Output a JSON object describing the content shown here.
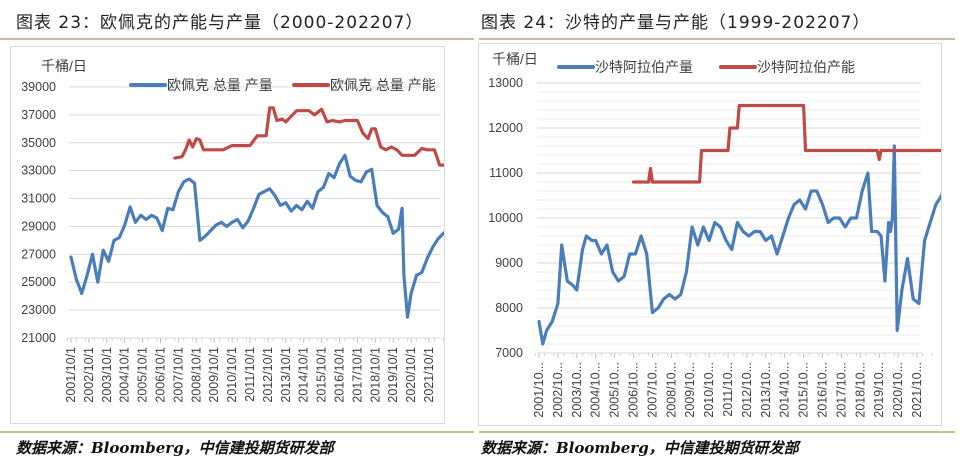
{
  "left": {
    "figure_title": "图表 23：欧佩克的产能与产量（2000-202207）",
    "source": "数据来源：Bloomberg，中信建投期货研发部"
  },
  "right": {
    "figure_title": "图表 24：沙特的产量与产能（1999-202207）",
    "source": "数据来源：Bloomberg，中信建投期货研发部"
  },
  "colors": {
    "production": "#4a7ebb",
    "capacity": "#be4b48",
    "grid": "#d9d9d9",
    "rule": "#c9bc97"
  },
  "chart_data": [
    {
      "type": "line",
      "title": "欧佩克的产能与产量（2000-202207）",
      "ylabel": "千桶/日",
      "xlabel": "",
      "ylim": [
        21000,
        39000
      ],
      "yticks": [
        21000,
        23000,
        25000,
        27000,
        29000,
        31000,
        33000,
        35000,
        37000,
        39000
      ],
      "grid": true,
      "legend_position": "top",
      "categories": [
        "2001/10/1",
        "2002/10/1",
        "2003/10/1",
        "2004/10/1",
        "2005/10/1",
        "2006/10/1",
        "2007/10/1",
        "2008/10/1",
        "2009/10/1",
        "2010/10/1",
        "2011/10/1",
        "2012/10/1",
        "2013/10/1",
        "2014/10/1",
        "2015/10/1",
        "2016/10/1",
        "2017/10/1",
        "2018/10/1",
        "2019/10/1",
        "2020/10/1",
        "2021/10/1"
      ],
      "series": [
        {
          "name": "欧佩克 总量 产量",
          "color": "#4a7ebb",
          "x": [
            2001.0,
            2001.3,
            2001.6,
            2001.9,
            2002.2,
            2002.5,
            2002.8,
            2003.1,
            2003.4,
            2003.7,
            2004.0,
            2004.3,
            2004.6,
            2004.9,
            2005.2,
            2005.5,
            2005.8,
            2006.1,
            2006.4,
            2006.7,
            2007.0,
            2007.3,
            2007.6,
            2007.9,
            2008.2,
            2008.5,
            2008.8,
            2009.1,
            2009.4,
            2009.7,
            2010.0,
            2010.3,
            2010.6,
            2010.9,
            2011.2,
            2011.5,
            2011.8,
            2012.1,
            2012.4,
            2012.7,
            2013.0,
            2013.3,
            2013.6,
            2013.9,
            2014.2,
            2014.5,
            2014.8,
            2015.1,
            2015.4,
            2015.7,
            2016.0,
            2016.3,
            2016.6,
            2016.9,
            2017.2,
            2017.5,
            2017.8,
            2018.1,
            2018.4,
            2018.7,
            2019.0,
            2019.3,
            2019.5,
            2019.6,
            2019.8,
            2020.0,
            2020.3,
            2020.6,
            2020.9,
            2021.2,
            2021.5,
            2021.8,
            2022.1,
            2022.5
          ],
          "values": [
            26800,
            25200,
            24200,
            25500,
            27000,
            25000,
            27300,
            26500,
            28000,
            28200,
            29100,
            30400,
            29300,
            29800,
            29500,
            29800,
            29600,
            28700,
            30300,
            30200,
            31500,
            32200,
            32400,
            32100,
            28000,
            28300,
            28700,
            29100,
            29300,
            29000,
            29300,
            29500,
            28900,
            29400,
            30300,
            31300,
            31500,
            31700,
            31200,
            30500,
            30700,
            30100,
            30500,
            30200,
            30800,
            30300,
            31500,
            31800,
            32800,
            32500,
            33500,
            34100,
            32600,
            32300,
            32200,
            32900,
            33100,
            30500,
            30000,
            29700,
            28500,
            28800,
            30300,
            25500,
            22500,
            24200,
            25500,
            25700,
            26700,
            27500,
            28100,
            28500,
            28800,
            29000
          ]
        },
        {
          "name": "欧佩克 总量 产能",
          "color": "#be4b48",
          "x": [
            2006.8,
            2007.2,
            2007.4,
            2007.6,
            2007.8,
            2008.0,
            2008.2,
            2008.4,
            2008.5,
            2009.0,
            2009.5,
            2010.0,
            2010.5,
            2011.0,
            2011.4,
            2011.6,
            2011.9,
            2012.1,
            2012.3,
            2012.5,
            2012.8,
            2013.0,
            2013.3,
            2013.6,
            2014.0,
            2014.3,
            2014.6,
            2015.0,
            2015.3,
            2015.6,
            2016.0,
            2016.3,
            2016.6,
            2017.0,
            2017.3,
            2017.6,
            2017.8,
            2018.0,
            2018.3,
            2018.6,
            2018.9,
            2019.2,
            2019.5,
            2019.8,
            2020.2,
            2020.6,
            2020.9,
            2021.3,
            2021.6,
            2021.9,
            2022.3,
            2022.5
          ],
          "values": [
            33900,
            34000,
            34500,
            35200,
            34700,
            35300,
            35200,
            34500,
            34500,
            34500,
            34500,
            34800,
            34800,
            34800,
            35500,
            35500,
            35500,
            37500,
            37500,
            36600,
            36700,
            36500,
            36900,
            37300,
            37300,
            37300,
            37000,
            37400,
            36500,
            36600,
            36500,
            36600,
            36600,
            36600,
            35700,
            35300,
            36000,
            36000,
            34700,
            34500,
            34700,
            34500,
            34100,
            34100,
            34100,
            34600,
            34500,
            34500,
            33400,
            33400,
            33400,
            33900
          ]
        }
      ]
    },
    {
      "type": "line",
      "title": "沙特的产量与产能（1999-202207）",
      "ylabel": "千桶/日",
      "xlabel": "",
      "ylim": [
        7000,
        13000
      ],
      "yticks": [
        7000,
        8000,
        9000,
        10000,
        11000,
        12000,
        13000
      ],
      "grid": true,
      "legend_position": "top",
      "categories": [
        "2001/10...",
        "2002/10...",
        "2003/10...",
        "2004/10...",
        "2005/10...",
        "2006/10...",
        "2007/10...",
        "2008/10...",
        "2009/10...",
        "2010/10...",
        "2011/10...",
        "2012/10...",
        "2013/10...",
        "2014/10...",
        "2015/10...",
        "2016/10...",
        "2017/10...",
        "2018/10...",
        "2019/10...",
        "2020/10...",
        "2021/10..."
      ],
      "series": [
        {
          "name": "沙特阿拉伯产量",
          "color": "#4a7ebb",
          "x": [
            2001.0,
            2001.2,
            2001.4,
            2001.7,
            2002.0,
            2002.2,
            2002.5,
            2002.8,
            2003.0,
            2003.3,
            2003.5,
            2003.8,
            2004.0,
            2004.3,
            2004.6,
            2004.9,
            2005.2,
            2005.5,
            2005.8,
            2006.1,
            2006.4,
            2006.7,
            2007.0,
            2007.3,
            2007.6,
            2007.9,
            2008.2,
            2008.5,
            2008.8,
            2009.1,
            2009.4,
            2009.7,
            2010.0,
            2010.3,
            2010.6,
            2010.9,
            2011.2,
            2011.5,
            2011.8,
            2012.1,
            2012.4,
            2012.7,
            2013.0,
            2013.3,
            2013.6,
            2013.9,
            2014.2,
            2014.5,
            2014.8,
            2015.1,
            2015.4,
            2015.7,
            2016.0,
            2016.3,
            2016.6,
            2016.9,
            2017.2,
            2017.5,
            2017.8,
            2018.1,
            2018.4,
            2018.6,
            2018.9,
            2019.1,
            2019.3,
            2019.5,
            2019.6,
            2019.7,
            2019.8,
            2019.95,
            2020.2,
            2020.5,
            2020.8,
            2021.1,
            2021.4,
            2021.7,
            2022.0,
            2022.3,
            2022.5
          ],
          "values": [
            7700,
            7200,
            7500,
            7700,
            8100,
            9400,
            8600,
            8500,
            8400,
            9300,
            9600,
            9500,
            9500,
            9200,
            9400,
            8800,
            8600,
            8700,
            9200,
            9200,
            9600,
            9200,
            7900,
            8000,
            8200,
            8300,
            8200,
            8300,
            8800,
            9800,
            9400,
            9800,
            9500,
            9900,
            9800,
            9500,
            9300,
            9900,
            9700,
            9600,
            9700,
            9700,
            9500,
            9600,
            9200,
            9600,
            10000,
            10300,
            10400,
            10200,
            10600,
            10600,
            10300,
            9900,
            10000,
            10000,
            9800,
            10000,
            10000,
            10600,
            11000,
            9700,
            9700,
            9600,
            8600,
            9900,
            9700,
            10000,
            11600,
            7500,
            8400,
            9100,
            8200,
            8100,
            9500,
            9900,
            10300,
            10500,
            10800
          ]
        },
        {
          "name": "沙特阿拉伯产能",
          "color": "#be4b48",
          "x": [
            2006.0,
            2006.8,
            2006.9,
            2007.0,
            2007.1,
            2007.9,
            2008.0,
            2009.5,
            2009.6,
            2011.0,
            2011.1,
            2011.5,
            2011.6,
            2015.0,
            2015.1,
            2018.9,
            2019.0,
            2019.1,
            2019.2,
            2022.4,
            2022.5
          ],
          "values": [
            10800,
            10800,
            11100,
            10800,
            10800,
            10800,
            10800,
            10800,
            11500,
            11500,
            12000,
            12000,
            12500,
            12500,
            11500,
            11500,
            11300,
            11500,
            11500,
            11500,
            12000
          ]
        }
      ]
    }
  ]
}
